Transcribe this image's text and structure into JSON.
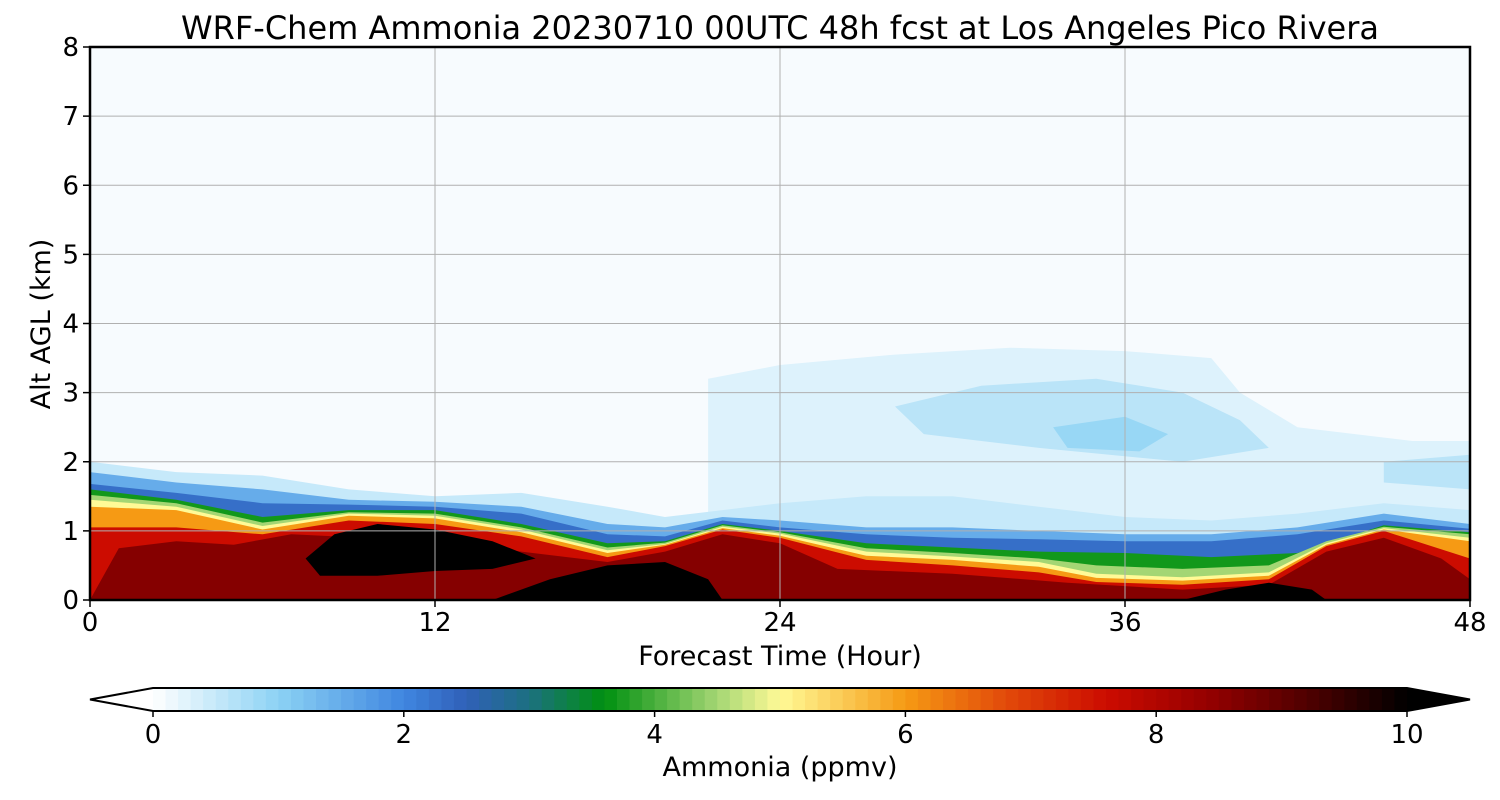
{
  "chart_data": {
    "type": "heatmap",
    "title": "WRF-Chem Ammonia  20230710 00UTC 48h fcst at Los Angeles Pico Rivera",
    "xlabel": "Forecast Time (Hour)",
    "ylabel": "Alt AGL (km)",
    "xlim": [
      0,
      48
    ],
    "ylim": [
      0,
      8
    ],
    "x_ticks": [
      0,
      12,
      24,
      36,
      48
    ],
    "y_ticks": [
      0,
      1,
      2,
      3,
      4,
      5,
      6,
      7,
      8
    ],
    "grid": true,
    "colorbar": {
      "label": "Ammonia  (ppmv)",
      "min": 0,
      "max": 10,
      "ticks": [
        0,
        2,
        4,
        6,
        8,
        10
      ],
      "extend": "both",
      "stops": [
        {
          "v": 0.0,
          "color": "#ffffff"
        },
        {
          "v": 1.0,
          "color": "#8cd2f4"
        },
        {
          "v": 2.0,
          "color": "#3f86e0"
        },
        {
          "v": 2.5,
          "color": "#3060b8"
        },
        {
          "v": 3.0,
          "color": "#1c7080"
        },
        {
          "v": 3.6,
          "color": "#009010"
        },
        {
          "v": 4.5,
          "color": "#a4d674"
        },
        {
          "v": 5.0,
          "color": "#fffa96"
        },
        {
          "v": 6.0,
          "color": "#f69a14"
        },
        {
          "v": 6.8,
          "color": "#e24a0a"
        },
        {
          "v": 7.6,
          "color": "#cc0c00"
        },
        {
          "v": 8.4,
          "color": "#960000"
        },
        {
          "v": 9.2,
          "color": "#500000"
        },
        {
          "v": 10.0,
          "color": "#000000"
        }
      ]
    },
    "layers": [
      {
        "name": "upper faint haze",
        "value": 0.3,
        "points": [
          [
            21.5,
            3.2
          ],
          [
            24,
            3.4
          ],
          [
            28,
            3.55
          ],
          [
            32,
            3.65
          ],
          [
            36,
            3.6
          ],
          [
            39,
            3.5
          ],
          [
            40,
            3.0
          ],
          [
            42,
            2.5
          ],
          [
            46,
            2.3
          ],
          [
            48,
            2.3
          ],
          [
            48,
            1.0
          ],
          [
            21.5,
            1.0
          ]
        ]
      },
      {
        "name": "upper haze core",
        "value": 0.6,
        "points": [
          [
            28,
            2.8
          ],
          [
            31,
            3.1
          ],
          [
            35,
            3.2
          ],
          [
            38,
            3.0
          ],
          [
            40,
            2.6
          ],
          [
            41,
            2.2
          ],
          [
            38,
            2.0
          ],
          [
            33,
            2.2
          ],
          [
            29,
            2.4
          ]
        ]
      },
      {
        "name": "upper haze center",
        "value": 0.9,
        "points": [
          [
            33.5,
            2.5
          ],
          [
            36,
            2.65
          ],
          [
            37.5,
            2.4
          ],
          [
            36.5,
            2.15
          ],
          [
            34,
            2.2
          ]
        ]
      },
      {
        "name": "right edge haze",
        "value": 0.6,
        "points": [
          [
            45,
            2.0
          ],
          [
            48,
            2.1
          ],
          [
            48,
            1.6
          ],
          [
            45,
            1.7
          ]
        ]
      },
      {
        "name": "boundary layer outer edge",
        "value": 0.5,
        "points": [
          [
            0,
            2.0
          ],
          [
            3,
            1.85
          ],
          [
            6,
            1.8
          ],
          [
            9,
            1.6
          ],
          [
            12,
            1.5
          ],
          [
            15,
            1.55
          ],
          [
            18,
            1.35
          ],
          [
            20,
            1.2
          ],
          [
            22,
            1.3
          ],
          [
            24,
            1.4
          ],
          [
            27,
            1.5
          ],
          [
            30,
            1.5
          ],
          [
            33,
            1.35
          ],
          [
            36,
            1.2
          ],
          [
            39,
            1.15
          ],
          [
            42,
            1.25
          ],
          [
            45,
            1.4
          ],
          [
            48,
            1.3
          ],
          [
            48,
            0
          ],
          [
            0,
            0
          ]
        ]
      },
      {
        "name": "boundary layer",
        "value": 1.5,
        "points": [
          [
            0,
            1.85
          ],
          [
            3,
            1.7
          ],
          [
            6,
            1.6
          ],
          [
            9,
            1.45
          ],
          [
            12,
            1.42
          ],
          [
            15,
            1.35
          ],
          [
            18,
            1.1
          ],
          [
            20,
            1.05
          ],
          [
            22,
            1.2
          ],
          [
            24,
            1.15
          ],
          [
            27,
            1.05
          ],
          [
            30,
            1.05
          ],
          [
            33,
            1.0
          ],
          [
            36,
            0.95
          ],
          [
            39,
            0.95
          ],
          [
            42,
            1.05
          ],
          [
            45,
            1.25
          ],
          [
            48,
            1.1
          ],
          [
            48,
            0
          ],
          [
            0,
            0
          ]
        ]
      },
      {
        "name": "boundary layer blue",
        "value": 2.3,
        "points": [
          [
            0,
            1.68
          ],
          [
            3,
            1.55
          ],
          [
            6,
            1.4
          ],
          [
            9,
            1.38
          ],
          [
            12,
            1.35
          ],
          [
            15,
            1.25
          ],
          [
            18,
            0.95
          ],
          [
            20,
            0.92
          ],
          [
            22,
            1.15
          ],
          [
            24,
            1.05
          ],
          [
            27,
            0.95
          ],
          [
            30,
            0.9
          ],
          [
            33,
            0.88
          ],
          [
            36,
            0.85
          ],
          [
            39,
            0.85
          ],
          [
            42,
            0.95
          ],
          [
            45,
            1.15
          ],
          [
            48,
            1.03
          ],
          [
            48,
            0
          ],
          [
            0,
            0
          ]
        ]
      },
      {
        "name": "green band",
        "value": 3.7,
        "points": [
          [
            0,
            1.6
          ],
          [
            3,
            1.45
          ],
          [
            6,
            1.2
          ],
          [
            9,
            1.3
          ],
          [
            12,
            1.3
          ],
          [
            15,
            1.1
          ],
          [
            18,
            0.82
          ],
          [
            20,
            0.85
          ],
          [
            22,
            1.1
          ],
          [
            24,
            1.0
          ],
          [
            27,
            0.82
          ],
          [
            30,
            0.76
          ],
          [
            33,
            0.7
          ],
          [
            36,
            0.68
          ],
          [
            39,
            0.62
          ],
          [
            42,
            0.68
          ],
          [
            45,
            1.08
          ],
          [
            48,
            0.98
          ],
          [
            48,
            0
          ],
          [
            0,
            0
          ]
        ]
      },
      {
        "name": "light green band",
        "value": 4.5,
        "points": [
          [
            0,
            1.52
          ],
          [
            3,
            1.4
          ],
          [
            6,
            1.12
          ],
          [
            9,
            1.27
          ],
          [
            12,
            1.25
          ],
          [
            15,
            1.05
          ],
          [
            18,
            0.76
          ],
          [
            20,
            0.83
          ],
          [
            22,
            1.08
          ],
          [
            24,
            0.98
          ],
          [
            27,
            0.75
          ],
          [
            30,
            0.68
          ],
          [
            33,
            0.6
          ],
          [
            35,
            0.5
          ],
          [
            38,
            0.45
          ],
          [
            41,
            0.5
          ],
          [
            43,
            0.85
          ],
          [
            45,
            1.06
          ],
          [
            48,
            0.95
          ],
          [
            48,
            0
          ],
          [
            0,
            0
          ]
        ]
      },
      {
        "name": "yellow band",
        "value": 5.0,
        "points": [
          [
            0,
            1.45
          ],
          [
            3,
            1.35
          ],
          [
            6,
            1.07
          ],
          [
            9,
            1.25
          ],
          [
            12,
            1.22
          ],
          [
            15,
            1.02
          ],
          [
            18,
            0.72
          ],
          [
            20,
            0.81
          ],
          [
            22,
            1.06
          ],
          [
            24,
            0.96
          ],
          [
            27,
            0.7
          ],
          [
            30,
            0.63
          ],
          [
            33,
            0.55
          ],
          [
            35,
            0.38
          ],
          [
            38,
            0.33
          ],
          [
            41,
            0.4
          ],
          [
            43,
            0.82
          ],
          [
            45,
            1.04
          ],
          [
            48,
            0.9
          ],
          [
            48,
            0
          ],
          [
            0,
            0
          ]
        ]
      },
      {
        "name": "orange band",
        "value": 6.0,
        "points": [
          [
            0,
            1.35
          ],
          [
            3,
            1.3
          ],
          [
            6,
            1.02
          ],
          [
            9,
            1.22
          ],
          [
            12,
            1.18
          ],
          [
            15,
            0.98
          ],
          [
            18,
            0.68
          ],
          [
            20,
            0.8
          ],
          [
            22,
            1.04
          ],
          [
            24,
            0.93
          ],
          [
            27,
            0.64
          ],
          [
            30,
            0.58
          ],
          [
            33,
            0.48
          ],
          [
            35,
            0.32
          ],
          [
            38,
            0.28
          ],
          [
            41,
            0.35
          ],
          [
            43,
            0.8
          ],
          [
            45,
            1.02
          ],
          [
            48,
            0.85
          ],
          [
            48,
            0
          ],
          [
            0,
            0
          ]
        ]
      },
      {
        "name": "red band",
        "value": 7.6,
        "points": [
          [
            0,
            1.05
          ],
          [
            3,
            1.05
          ],
          [
            6,
            0.95
          ],
          [
            9,
            1.15
          ],
          [
            12,
            1.1
          ],
          [
            15,
            0.92
          ],
          [
            18,
            0.62
          ],
          [
            20,
            0.78
          ],
          [
            22,
            1.02
          ],
          [
            24,
            0.9
          ],
          [
            27,
            0.58
          ],
          [
            30,
            0.5
          ],
          [
            33,
            0.4
          ],
          [
            35,
            0.26
          ],
          [
            38,
            0.22
          ],
          [
            41,
            0.3
          ],
          [
            43,
            0.78
          ],
          [
            45,
            1.0
          ],
          [
            48,
            0.6
          ],
          [
            48,
            0
          ],
          [
            0,
            0
          ]
        ]
      },
      {
        "name": "dark red core",
        "value": 8.6,
        "points": [
          [
            1,
            0.75
          ],
          [
            3,
            0.85
          ],
          [
            5,
            0.8
          ],
          [
            7,
            0.95
          ],
          [
            12,
            0.85
          ],
          [
            15,
            0.7
          ],
          [
            18,
            0.55
          ],
          [
            20,
            0.7
          ],
          [
            22,
            0.95
          ],
          [
            24,
            0.82
          ],
          [
            26,
            0.45
          ],
          [
            30,
            0.38
          ],
          [
            34,
            0.25
          ],
          [
            38,
            0.15
          ],
          [
            41,
            0.22
          ],
          [
            43,
            0.7
          ],
          [
            45,
            0.9
          ],
          [
            47,
            0.6
          ],
          [
            48,
            0.3
          ],
          [
            48,
            0
          ],
          [
            0,
            0
          ]
        ]
      },
      {
        "name": "black core left",
        "value": 10.0,
        "points": [
          [
            7.5,
            0.6
          ],
          [
            8.5,
            0.95
          ],
          [
            10,
            1.1
          ],
          [
            12,
            1.02
          ],
          [
            14,
            0.85
          ],
          [
            15.5,
            0.6
          ],
          [
            14,
            0.45
          ],
          [
            12,
            0.42
          ],
          [
            10,
            0.35
          ],
          [
            8,
            0.35
          ]
        ]
      },
      {
        "name": "black core middle",
        "value": 10.0,
        "points": [
          [
            14,
            0
          ],
          [
            16,
            0.3
          ],
          [
            18,
            0.5
          ],
          [
            20,
            0.55
          ],
          [
            21.5,
            0.3
          ],
          [
            22,
            0
          ]
        ]
      },
      {
        "name": "black core right",
        "value": 10.0,
        "points": [
          [
            38,
            0
          ],
          [
            39.5,
            0.15
          ],
          [
            41,
            0.25
          ],
          [
            42.5,
            0.15
          ],
          [
            43,
            0
          ]
        ]
      }
    ]
  }
}
